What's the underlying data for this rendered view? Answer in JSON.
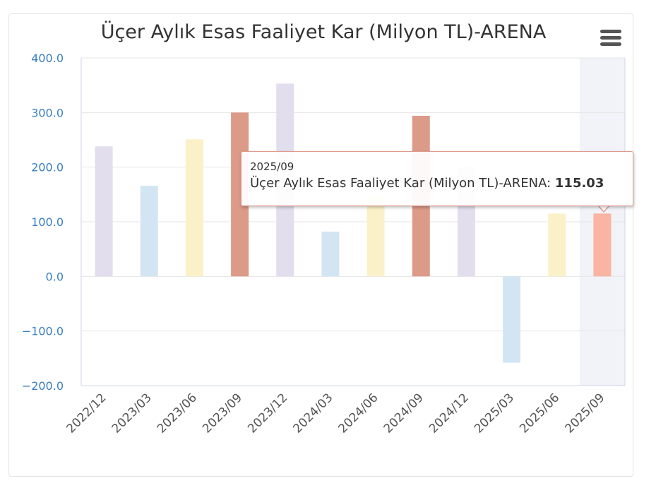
{
  "chart_data": {
    "type": "bar",
    "title": "Üçer Aylık Esas Faaliyet Kar (Milyon TL)-ARENA",
    "categories": [
      "2022/12",
      "2023/03",
      "2023/06",
      "2023/09",
      "2023/12",
      "2024/03",
      "2024/06",
      "2024/09",
      "2024/12",
      "2025/03",
      "2025/06",
      "2025/09"
    ],
    "series": [
      {
        "name": "Üçer Aylık Esas Faaliyet Kar (Milyon TL)-ARENA",
        "values": [
          238,
          166,
          251,
          300,
          353,
          82,
          150,
          294,
          200,
          -158,
          115,
          115.03
        ]
      }
    ],
    "bar_colors": [
      "#e2deed",
      "#d3e5f3",
      "#fbf1c8",
      "#dc9a88",
      "#e2deed",
      "#d3e5f3",
      "#fbf1c8",
      "#dc9a88",
      "#e2deed",
      "#d3e5f3",
      "#fbf1c8",
      "#f9b4a2"
    ],
    "ylim": [
      -200,
      400
    ],
    "yticks": [
      "400.0",
      "300.0",
      "200.0",
      "100.0",
      "0.0",
      "−100.0",
      "−200.0"
    ],
    "ytick_values": [
      400,
      300,
      200,
      100,
      0,
      -100,
      -200
    ],
    "grid": true,
    "highlighted_category": "2025/09",
    "highlight_color": "#f1f3f9",
    "axis_color": "#3a7fc4"
  },
  "toolbar": {
    "menu_icon": "hamburger-menu-icon"
  },
  "tooltip": {
    "date": "2025/09",
    "series_label": "Üçer Aylık Esas Faaliyet Kar (Milyon TL)-ARENA: ",
    "value": "115.03"
  }
}
